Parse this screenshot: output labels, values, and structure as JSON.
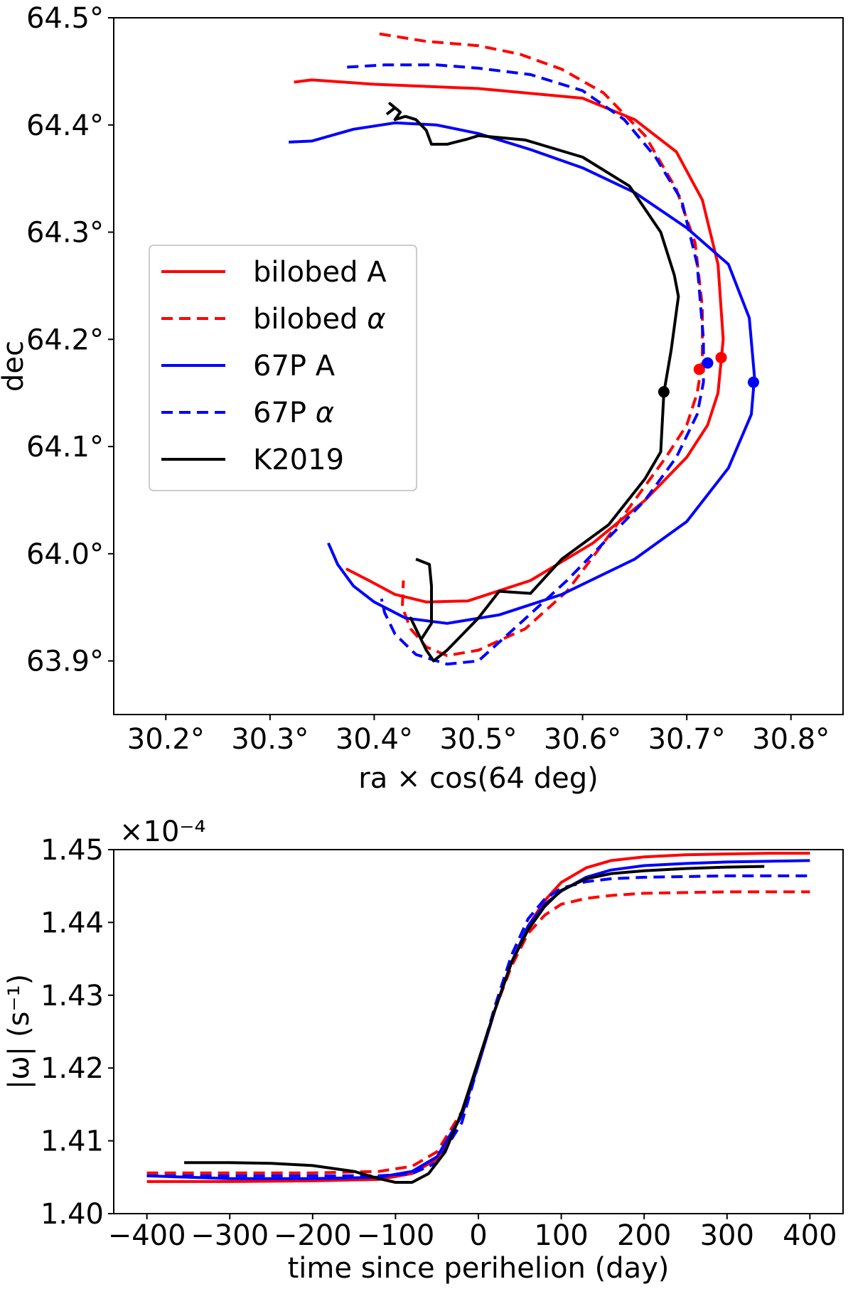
{
  "chart_data": [
    {
      "type": "line",
      "title": "",
      "xlabel": "ra × cos(64 deg)",
      "ylabel": "dec",
      "xlim": [
        30.15,
        30.85
      ],
      "ylim": [
        63.85,
        64.5
      ],
      "xticks": [
        30.2,
        30.3,
        30.4,
        30.5,
        30.6,
        30.7,
        30.8
      ],
      "xtick_labels": [
        "30.2°",
        "30.3°",
        "30.4°",
        "30.5°",
        "30.6°",
        "30.7°",
        "30.8°"
      ],
      "yticks": [
        63.9,
        64.0,
        64.1,
        64.2,
        64.3,
        64.4,
        64.5
      ],
      "ytick_labels": [
        "63.9°",
        "64.0°",
        "64.1°",
        "64.2°",
        "64.3°",
        "64.4°",
        "64.5°"
      ],
      "legend_position": "center-left",
      "grid": false,
      "series": [
        {
          "name": "bilobed A",
          "legend_main": "bilobed A",
          "legend_greek": "",
          "color": "#ff0000",
          "dash": "solid",
          "points": [
            [
              30.323,
              64.44
            ],
            [
              30.34,
              64.442
            ],
            [
              30.4,
              64.438
            ],
            [
              30.5,
              64.434
            ],
            [
              30.6,
              64.425
            ],
            [
              30.65,
              64.405
            ],
            [
              30.69,
              64.375
            ],
            [
              30.715,
              64.33
            ],
            [
              30.73,
              64.27
            ],
            [
              30.735,
              64.2
            ],
            [
              30.73,
              64.15
            ],
            [
              30.72,
              64.12
            ],
            [
              30.7,
              64.09
            ],
            [
              30.66,
              64.05
            ],
            [
              30.61,
              64.01
            ],
            [
              30.55,
              63.975
            ],
            [
              30.49,
              63.956
            ],
            [
              30.45,
              63.955
            ],
            [
              30.42,
              63.962
            ],
            [
              30.395,
              63.975
            ],
            [
              30.373,
              63.986
            ]
          ],
          "marker": [
            30.733,
            64.183
          ]
        },
        {
          "name": "bilobed α",
          "legend_main": "bilobed ",
          "legend_greek": "α",
          "color": "#ff0000",
          "dash": "dashed",
          "points": [
            [
              30.405,
              64.485
            ],
            [
              30.45,
              64.478
            ],
            [
              30.5,
              64.474
            ],
            [
              30.54,
              64.466
            ],
            [
              30.58,
              64.452
            ],
            [
              30.62,
              64.43
            ],
            [
              30.66,
              64.39
            ],
            [
              30.69,
              64.34
            ],
            [
              30.708,
              64.29
            ],
            [
              30.715,
              64.23
            ],
            [
              30.715,
              64.18
            ],
            [
              30.71,
              64.15
            ],
            [
              30.7,
              64.12
            ],
            [
              30.68,
              64.09
            ],
            [
              30.65,
              64.05
            ],
            [
              30.62,
              64.01
            ],
            [
              30.585,
              63.965
            ],
            [
              30.545,
              63.93
            ],
            [
              30.5,
              63.91
            ],
            [
              30.47,
              63.905
            ],
            [
              30.45,
              63.913
            ],
            [
              30.435,
              63.93
            ],
            [
              30.427,
              63.95
            ],
            [
              30.428,
              63.975
            ]
          ],
          "marker": [
            30.712,
            64.172
          ]
        },
        {
          "name": "67P A",
          "legend_main": "67P A",
          "legend_greek": "",
          "color": "#0000ff",
          "dash": "solid",
          "points": [
            [
              30.318,
              64.384
            ],
            [
              30.34,
              64.385
            ],
            [
              30.38,
              64.396
            ],
            [
              30.42,
              64.402
            ],
            [
              30.46,
              64.4
            ],
            [
              30.5,
              64.392
            ],
            [
              30.55,
              64.377
            ],
            [
              30.6,
              64.36
            ],
            [
              30.65,
              64.337
            ],
            [
              30.7,
              64.304
            ],
            [
              30.74,
              64.27
            ],
            [
              30.76,
              64.22
            ],
            [
              30.765,
              64.165
            ],
            [
              30.762,
              64.13
            ],
            [
              30.74,
              64.08
            ],
            [
              30.7,
              64.03
            ],
            [
              30.65,
              63.995
            ],
            [
              30.58,
              63.962
            ],
            [
              30.52,
              63.943
            ],
            [
              30.47,
              63.935
            ],
            [
              30.43,
              63.94
            ],
            [
              30.4,
              63.955
            ],
            [
              30.38,
              63.97
            ],
            [
              30.365,
              63.99
            ],
            [
              30.356,
              64.01
            ]
          ],
          "marker": [
            30.764,
            64.16
          ]
        },
        {
          "name": "67P α",
          "legend_main": "67P ",
          "legend_greek": "α",
          "color": "#0000ff",
          "dash": "dashed",
          "points": [
            [
              30.374,
              64.454
            ],
            [
              30.41,
              64.456
            ],
            [
              30.46,
              64.456
            ],
            [
              30.5,
              64.453
            ],
            [
              30.55,
              64.447
            ],
            [
              30.6,
              64.432
            ],
            [
              30.64,
              64.405
            ],
            [
              30.67,
              64.37
            ],
            [
              30.695,
              64.33
            ],
            [
              30.71,
              64.27
            ],
            [
              30.716,
              64.2
            ],
            [
              30.716,
              64.16
            ],
            [
              30.71,
              64.13
            ],
            [
              30.69,
              64.09
            ],
            [
              30.66,
              64.05
            ],
            [
              30.62,
              64.01
            ],
            [
              30.585,
              63.975
            ],
            [
              30.54,
              63.935
            ],
            [
              30.5,
              63.9
            ],
            [
              30.47,
              63.897
            ],
            [
              30.44,
              63.906
            ],
            [
              30.42,
              63.925
            ],
            [
              30.41,
              63.945
            ],
            [
              30.407,
              63.958
            ]
          ],
          "marker": [
            30.72,
            64.178
          ]
        },
        {
          "name": "K2019",
          "legend_main": "K2019",
          "legend_greek": "",
          "color": "#000000",
          "dash": "solid",
          "points": [
            [
              30.412,
              64.41
            ],
            [
              30.42,
              64.416
            ],
            [
              30.415,
              64.42
            ],
            [
              30.425,
              64.412
            ],
            [
              30.42,
              64.405
            ],
            [
              30.43,
              64.408
            ],
            [
              30.44,
              64.405
            ],
            [
              30.45,
              64.395
            ],
            [
              30.455,
              64.382
            ],
            [
              30.47,
              64.382
            ],
            [
              30.49,
              64.387
            ],
            [
              30.5,
              64.39
            ],
            [
              30.545,
              64.386
            ],
            [
              30.6,
              64.37
            ],
            [
              30.645,
              64.343
            ],
            [
              30.675,
              64.3
            ],
            [
              30.688,
              64.26
            ],
            [
              30.692,
              64.24
            ],
            [
              30.685,
              64.19
            ],
            [
              30.678,
              64.15
            ],
            [
              30.675,
              64.095
            ],
            [
              30.66,
              64.07
            ],
            [
              30.625,
              64.027
            ],
            [
              30.58,
              63.995
            ],
            [
              30.55,
              63.963
            ],
            [
              30.52,
              63.965
            ],
            [
              30.5,
              63.94
            ],
            [
              30.47,
              63.91
            ],
            [
              30.457,
              63.9
            ],
            [
              30.45,
              63.91
            ],
            [
              30.44,
              63.93
            ],
            [
              30.435,
              63.94
            ],
            [
              30.445,
              63.92
            ],
            [
              30.455,
              63.935
            ],
            [
              30.455,
              63.97
            ],
            [
              30.453,
              63.99
            ],
            [
              30.44,
              63.995
            ]
          ],
          "marker": [
            30.678,
            64.151
          ]
        }
      ]
    },
    {
      "type": "line",
      "title": "",
      "xlabel": "time since perihelion (day)",
      "ylabel": "|ω| (s⁻¹)",
      "scale_factor": "×10⁻⁴",
      "xlim": [
        -440,
        440
      ],
      "ylim": [
        1.4,
        1.45
      ],
      "xticks": [
        -400,
        -300,
        -200,
        -100,
        0,
        100,
        200,
        300,
        400
      ],
      "xtick_labels": [
        "−400",
        "−300",
        "−200",
        "−100",
        "0",
        "100",
        "200",
        "300",
        "400"
      ],
      "yticks": [
        1.4,
        1.41,
        1.42,
        1.43,
        1.44,
        1.45
      ],
      "ytick_labels": [
        "1.40",
        "1.41",
        "1.42",
        "1.43",
        "1.44",
        "1.45"
      ],
      "grid": false,
      "series": [
        {
          "name": "bilobed A",
          "color": "#ff0000",
          "dash": "solid",
          "x": [
            -400,
            -300,
            -200,
            -120,
            -80,
            -50,
            -20,
            0,
            20,
            40,
            60,
            80,
            100,
            130,
            160,
            200,
            250,
            300,
            350,
            400
          ],
          "y": [
            1.4044,
            1.4044,
            1.4045,
            1.4047,
            1.4055,
            1.4075,
            1.4135,
            1.4205,
            1.428,
            1.4345,
            1.4395,
            1.443,
            1.4455,
            1.4475,
            1.4485,
            1.449,
            1.4493,
            1.4494,
            1.4495,
            1.4495
          ]
        },
        {
          "name": "bilobed α",
          "color": "#ff0000",
          "dash": "dashed",
          "x": [
            -400,
            -300,
            -200,
            -120,
            -80,
            -50,
            -20,
            0,
            20,
            40,
            60,
            80,
            100,
            130,
            160,
            200,
            250,
            300,
            350,
            400
          ],
          "y": [
            1.4056,
            1.4056,
            1.4056,
            1.4058,
            1.4065,
            1.4085,
            1.414,
            1.4205,
            1.428,
            1.434,
            1.4385,
            1.441,
            1.4425,
            1.4433,
            1.4437,
            1.444,
            1.4441,
            1.4442,
            1.4442,
            1.4442
          ]
        },
        {
          "name": "67P A",
          "color": "#0000ff",
          "dash": "solid",
          "x": [
            -400,
            -300,
            -200,
            -120,
            -80,
            -50,
            -20,
            0,
            20,
            40,
            60,
            80,
            100,
            130,
            160,
            200,
            250,
            300,
            350,
            400
          ],
          "y": [
            1.4052,
            1.4048,
            1.4048,
            1.405,
            1.4058,
            1.4078,
            1.4135,
            1.4205,
            1.428,
            1.4345,
            1.4395,
            1.4425,
            1.4443,
            1.4462,
            1.4472,
            1.4478,
            1.4481,
            1.4483,
            1.4484,
            1.4485
          ]
        },
        {
          "name": "67P α",
          "color": "#0000ff",
          "dash": "dashed",
          "x": [
            -400,
            -300,
            -200,
            -120,
            -80,
            -50,
            -20,
            0,
            20,
            40,
            60,
            80,
            100,
            130,
            160,
            200,
            250,
            300,
            350,
            400
          ],
          "y": [
            1.4052,
            1.4052,
            1.4052,
            1.4052,
            1.4055,
            1.407,
            1.4125,
            1.4205,
            1.4285,
            1.4355,
            1.4405,
            1.4432,
            1.4447,
            1.4456,
            1.446,
            1.4462,
            1.4463,
            1.4464,
            1.4464,
            1.4464
          ]
        },
        {
          "name": "K2019",
          "color": "#000000",
          "dash": "solid",
          "x": [
            -355,
            -300,
            -250,
            -200,
            -150,
            -120,
            -100,
            -80,
            -60,
            -40,
            -20,
            0,
            20,
            40,
            60,
            80,
            100,
            130,
            160,
            200,
            250,
            300,
            345
          ],
          "y": [
            1.407,
            1.407,
            1.4069,
            1.4066,
            1.4058,
            1.4048,
            1.4043,
            1.4043,
            1.4055,
            1.4085,
            1.414,
            1.421,
            1.428,
            1.4345,
            1.439,
            1.4422,
            1.4444,
            1.446,
            1.4467,
            1.4471,
            1.4474,
            1.4476,
            1.4477
          ]
        }
      ]
    }
  ]
}
